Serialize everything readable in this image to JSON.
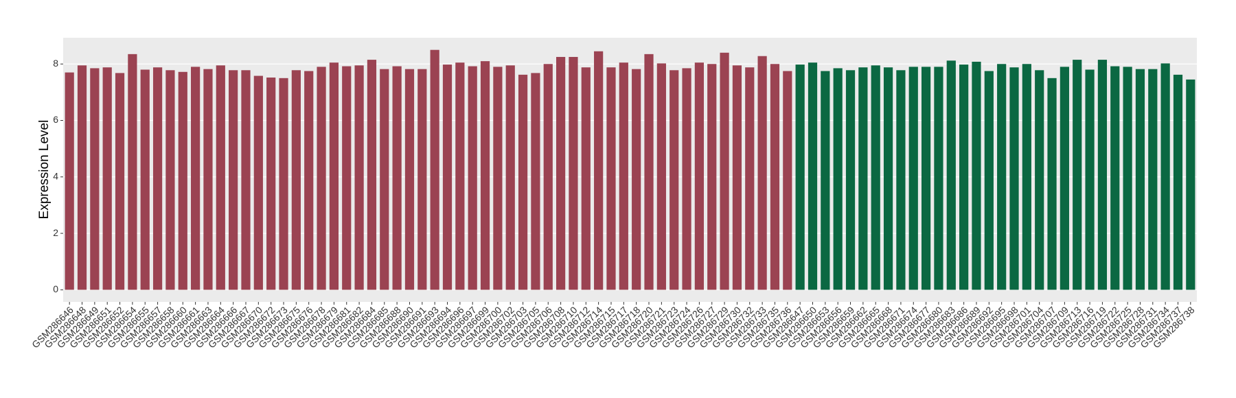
{
  "chart_data": {
    "type": "bar",
    "y_label": "Expression Level",
    "categories": [
      "GSM286646",
      "GSM286648",
      "GSM286649",
      "GSM286651",
      "GSM286652",
      "GSM286654",
      "GSM286655",
      "GSM286657",
      "GSM286658",
      "GSM286660",
      "GSM286661",
      "GSM286663",
      "GSM286664",
      "GSM286666",
      "GSM286667",
      "GSM286670",
      "GSM286672",
      "GSM286673",
      "GSM286675",
      "GSM286676",
      "GSM286678",
      "GSM286679",
      "GSM286681",
      "GSM286682",
      "GSM286684",
      "GSM286685",
      "GSM286688",
      "GSM286690",
      "GSM286691",
      "GSM286693",
      "GSM286694",
      "GSM286696",
      "GSM286697",
      "GSM286699",
      "GSM286700",
      "GSM286702",
      "GSM286703",
      "GSM286705",
      "GSM286706",
      "GSM286708",
      "GSM286710",
      "GSM286712",
      "GSM286714",
      "GSM286715",
      "GSM286717",
      "GSM286718",
      "GSM286720",
      "GSM286721",
      "GSM286723",
      "GSM286724",
      "GSM286726",
      "GSM286727",
      "GSM286729",
      "GSM286730",
      "GSM286732",
      "GSM286733",
      "GSM286735",
      "GSM286736",
      "GSM286647",
      "GSM286650",
      "GSM286653",
      "GSM286656",
      "GSM286659",
      "GSM286662",
      "GSM286665",
      "GSM286668",
      "GSM286671",
      "GSM286674",
      "GSM286677",
      "GSM286680",
      "GSM286683",
      "GSM286686",
      "GSM286689",
      "GSM286692",
      "GSM286695",
      "GSM286698",
      "GSM286701",
      "GSM286704",
      "GSM286707",
      "GSM286709",
      "GSM286713",
      "GSM286716",
      "GSM286719",
      "GSM286722",
      "GSM286725",
      "GSM286728",
      "GSM286731",
      "GSM286734",
      "GSM286737",
      "GSM286738"
    ],
    "values": [
      7.7,
      7.95,
      7.85,
      7.88,
      7.68,
      8.35,
      7.8,
      7.88,
      7.78,
      7.72,
      7.9,
      7.82,
      7.95,
      7.78,
      7.78,
      7.58,
      7.52,
      7.5,
      7.78,
      7.75,
      7.9,
      8.05,
      7.92,
      7.95,
      8.15,
      7.82,
      7.92,
      7.82,
      7.82,
      8.5,
      7.98,
      8.05,
      7.92,
      8.1,
      7.9,
      7.95,
      7.62,
      7.68,
      8.0,
      8.25,
      8.25,
      7.88,
      8.45,
      7.88,
      8.05,
      7.82,
      8.35,
      8.02,
      7.78,
      7.85,
      8.05,
      8.0,
      8.4,
      7.95,
      7.88,
      8.28,
      8.0,
      7.75,
      7.98,
      8.05,
      7.75,
      7.85,
      7.78,
      7.88,
      7.95,
      7.88,
      7.78,
      7.9,
      7.9,
      7.9,
      8.12,
      7.98,
      8.08,
      7.75,
      8.0,
      7.88,
      8.0,
      7.78,
      7.5,
      7.9,
      8.15,
      7.8,
      8.15,
      7.92,
      7.9,
      7.82,
      7.82,
      8.02,
      7.62,
      7.45
    ],
    "colors": [
      "#9b4352",
      "#9b4352",
      "#9b4352",
      "#9b4352",
      "#9b4352",
      "#9b4352",
      "#9b4352",
      "#9b4352",
      "#9b4352",
      "#9b4352",
      "#9b4352",
      "#9b4352",
      "#9b4352",
      "#9b4352",
      "#9b4352",
      "#9b4352",
      "#9b4352",
      "#9b4352",
      "#9b4352",
      "#9b4352",
      "#9b4352",
      "#9b4352",
      "#9b4352",
      "#9b4352",
      "#9b4352",
      "#9b4352",
      "#9b4352",
      "#9b4352",
      "#9b4352",
      "#9b4352",
      "#9b4352",
      "#9b4352",
      "#9b4352",
      "#9b4352",
      "#9b4352",
      "#9b4352",
      "#9b4352",
      "#9b4352",
      "#9b4352",
      "#9b4352",
      "#9b4352",
      "#9b4352",
      "#9b4352",
      "#9b4352",
      "#9b4352",
      "#9b4352",
      "#9b4352",
      "#9b4352",
      "#9b4352",
      "#9b4352",
      "#9b4352",
      "#9b4352",
      "#9b4352",
      "#9b4352",
      "#9b4352",
      "#9b4352",
      "#9b4352",
      "#9b4352",
      "#0b6842",
      "#0b6842",
      "#0b6842",
      "#0b6842",
      "#0b6842",
      "#0b6842",
      "#0b6842",
      "#0b6842",
      "#0b6842",
      "#0b6842",
      "#0b6842",
      "#0b6842",
      "#0b6842",
      "#0b6842",
      "#0b6842",
      "#0b6842",
      "#0b6842",
      "#0b6842",
      "#0b6842",
      "#0b6842",
      "#0b6842",
      "#0b6842",
      "#0b6842",
      "#0b6842",
      "#0b6842",
      "#0b6842",
      "#0b6842",
      "#0b6842",
      "#0b6842",
      "#0b6842",
      "#0b6842",
      "#0b6842"
    ],
    "ylim": [
      -0.43,
      8.93
    ],
    "yticks": [
      0,
      2,
      4,
      6,
      8
    ],
    "grid": true
  }
}
